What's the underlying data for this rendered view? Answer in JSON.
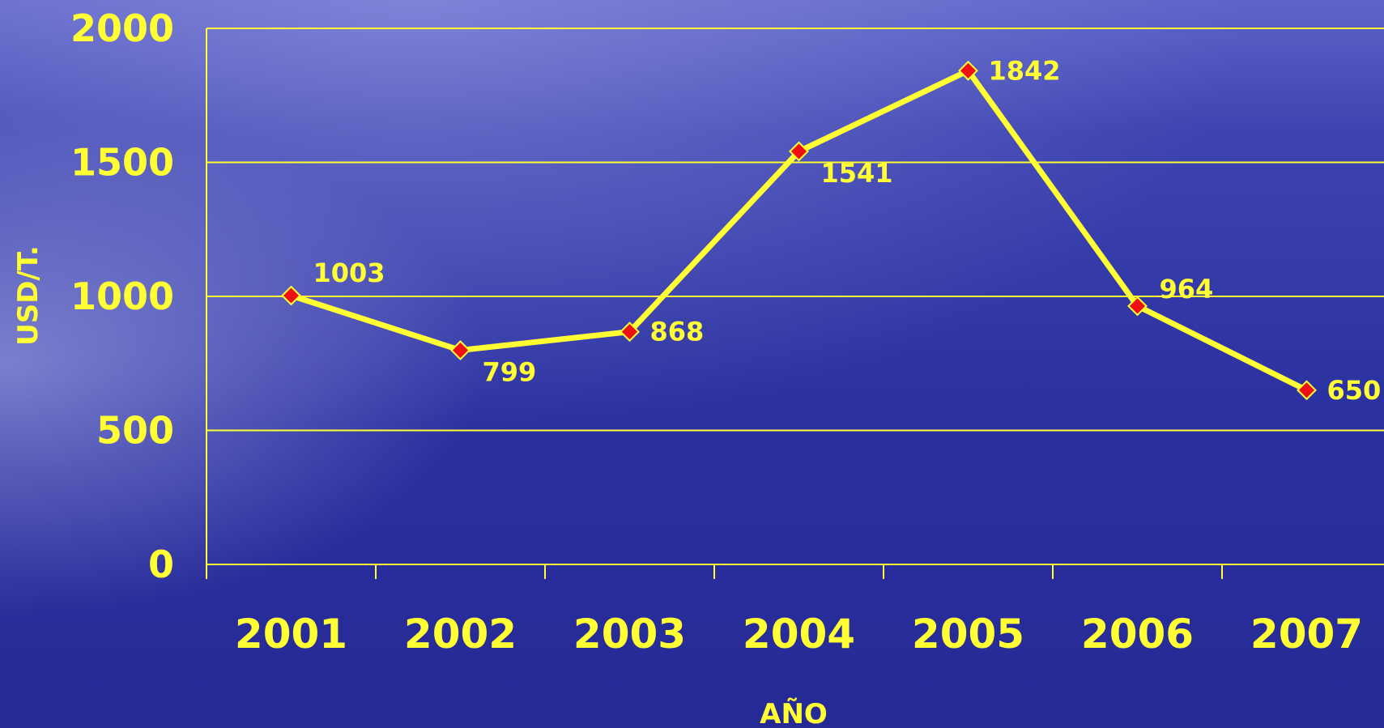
{
  "chart_data": {
    "type": "line",
    "x": [
      "2001",
      "2002",
      "2003",
      "2004",
      "2005",
      "2006",
      "2007"
    ],
    "series": [
      {
        "values": [
          1003,
          799,
          868,
          1541,
          1842,
          964,
          650
        ]
      }
    ],
    "data_labels": [
      "1003",
      "799",
      "868",
      "1541",
      "1842",
      "964",
      "650"
    ],
    "xlabel": "AÑO",
    "ylabel": "USD/T.",
    "yticks": [
      "0",
      "500",
      "1000",
      "1500",
      "2000"
    ],
    "ylim": [
      0,
      2000
    ],
    "grid": true,
    "legend": "none",
    "marker": "diamond",
    "colors": {
      "line": "#ffff33",
      "marker": "#ee1111",
      "marker_edge": "#ffff33",
      "text": "#ffff33",
      "grid": "#ffff33",
      "background_top": "#5a60c6",
      "background_bottom": "#23279a"
    }
  }
}
